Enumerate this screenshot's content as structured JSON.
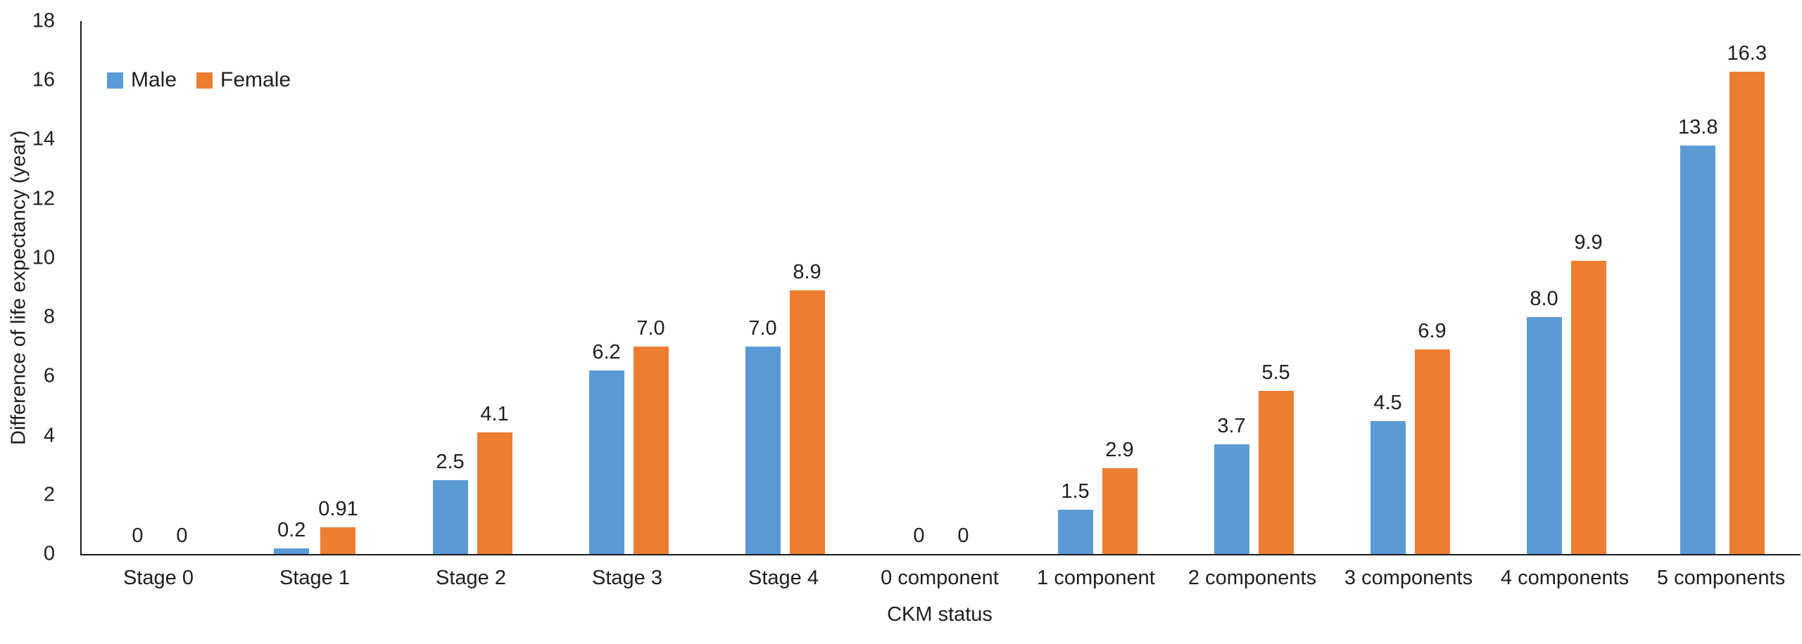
{
  "chart_data": {
    "type": "bar",
    "title": "",
    "xlabel": "CKM status",
    "ylabel": "Difference of life expectancy (year)",
    "categories": [
      "Stage 0",
      "Stage 1",
      "Stage 2",
      "Stage 3",
      "Stage 4",
      "0 component",
      "1 component",
      "2 components",
      "3 components",
      "4 components",
      "5 components"
    ],
    "series": [
      {
        "name": "Male",
        "color": "#5B9BD5",
        "values": [
          0,
          0.2,
          2.5,
          6.2,
          7.0,
          0,
          1.5,
          3.7,
          4.5,
          8.0,
          13.8
        ],
        "labels": [
          "0",
          "0.2",
          "2.5",
          "6.2",
          "7.0",
          "0",
          "1.5",
          "3.7",
          "4.5",
          "8.0",
          "13.8"
        ]
      },
      {
        "name": "Female",
        "color": "#ED7D31",
        "values": [
          0,
          0.91,
          4.1,
          7.0,
          8.9,
          0,
          2.9,
          5.5,
          6.9,
          9.9,
          16.3
        ],
        "labels": [
          "0",
          "0.91",
          "4.1",
          "7.0",
          "8.9",
          "0",
          "2.9",
          "5.5",
          "6.9",
          "9.9",
          "16.3"
        ]
      }
    ],
    "ylim": [
      0,
      18
    ],
    "yticks": [
      0,
      2,
      4,
      6,
      8,
      10,
      12,
      14,
      16,
      18
    ],
    "grid": false,
    "legend_position": "top-left",
    "axis_color": "#1a1a1a",
    "text_color": "#1f1f1f"
  }
}
